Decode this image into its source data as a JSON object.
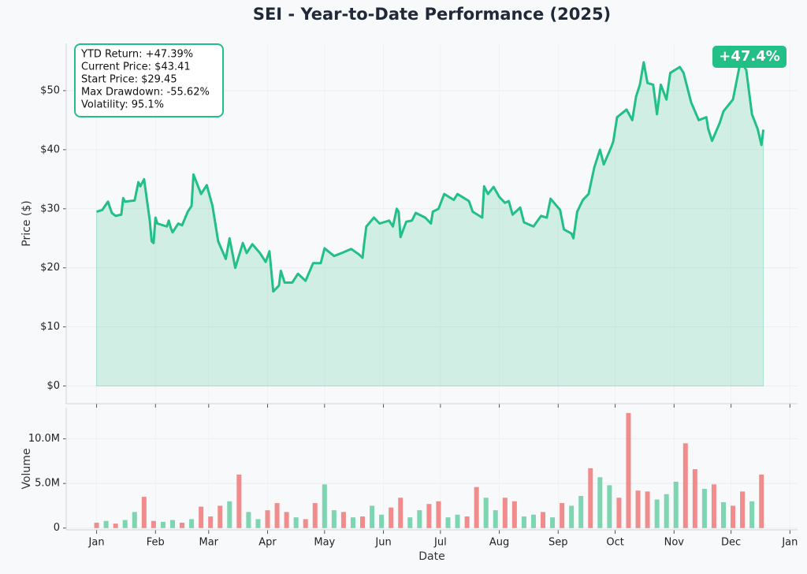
{
  "chart_data": [
    {
      "type": "line",
      "title": "SEI - Year-to-Date Performance (2025)",
      "ylabel": "Price ($)",
      "color": "#22bf87",
      "area_color": "#22bf87",
      "grid": true,
      "annotations": [
        "YTD Return: +47.39%",
        "Current Price: $43.41",
        "Start Price: $29.45",
        "Max Drawdown: -55.62%",
        "Volatility: 95.1%"
      ],
      "badge": "+47.4%",
      "x": [
        0,
        3,
        6,
        8,
        10,
        13,
        14,
        15,
        20,
        22,
        23,
        25,
        28,
        29,
        30,
        31,
        32,
        35,
        37,
        38,
        39,
        40,
        43,
        45,
        48,
        50,
        51,
        55,
        56,
        58,
        61,
        64,
        68,
        70,
        73,
        77,
        79,
        82,
        86,
        89,
        91,
        93,
        96,
        97,
        99,
        103,
        106,
        110,
        114,
        118,
        120,
        125,
        129,
        134,
        138,
        140,
        141,
        142,
        146,
        149,
        154,
        156,
        158,
        159,
        160,
        163,
        166,
        168,
        173,
        176,
        177,
        180,
        183,
        188,
        190,
        196,
        198,
        203,
        204,
        206,
        209,
        212,
        215,
        217,
        219,
        223,
        225,
        230,
        234,
        237,
        239,
        244,
        246,
        250,
        251,
        253,
        256,
        259,
        262,
        265,
        267,
        271,
        272,
        274,
        279,
        282,
        284,
        286,
        288,
        290,
        293,
        295,
        297,
        300,
        302,
        307,
        309,
        313,
        317,
        321,
        322,
        324,
        328,
        330,
        335,
        339,
        342,
        345,
        348,
        350,
        351
      ],
      "values": [
        29.5,
        29.8,
        31.2,
        29.3,
        28.8,
        29.0,
        31.8,
        31.2,
        31.4,
        34.5,
        33.8,
        35.0,
        28.0,
        24.5,
        24.2,
        28.5,
        27.5,
        27.2,
        27.0,
        28.0,
        26.8,
        26.0,
        27.5,
        27.2,
        29.5,
        30.5,
        35.8,
        32.5,
        33.0,
        34.0,
        30.5,
        24.5,
        21.5,
        25.0,
        20.0,
        24.2,
        22.5,
        24.0,
        22.5,
        21.0,
        22.8,
        16.0,
        17.0,
        19.5,
        17.5,
        17.5,
        19.0,
        17.8,
        20.8,
        20.8,
        23.3,
        22.0,
        22.5,
        23.2,
        22.3,
        21.7,
        24.5,
        27.0,
        28.5,
        27.5,
        28.0,
        27.0,
        30.0,
        29.5,
        25.2,
        27.8,
        28.0,
        29.3,
        28.5,
        27.5,
        29.5,
        30.0,
        32.5,
        31.5,
        32.5,
        31.3,
        29.5,
        28.5,
        33.8,
        32.5,
        33.7,
        32.0,
        31.0,
        31.3,
        29.0,
        30.2,
        27.7,
        27.0,
        28.8,
        28.5,
        31.7,
        29.8,
        26.5,
        25.8,
        25.0,
        29.5,
        31.5,
        32.5,
        37.0,
        40.0,
        37.5,
        40.5,
        41.4,
        45.5,
        46.8,
        45.0,
        49.0,
        51.0,
        54.8,
        51.3,
        51.0,
        46.0,
        51.0,
        48.5,
        53.0,
        54.0,
        53.0,
        48.0,
        45.0,
        45.5,
        43.5,
        41.5,
        44.5,
        46.5,
        48.5,
        55.0,
        53.5,
        46.0,
        43.5,
        40.8,
        43.4
      ],
      "xlim": [
        -16,
        369
      ],
      "xticks": [
        0,
        31,
        59,
        90,
        120,
        151,
        181,
        212,
        243,
        273,
        304,
        334,
        365
      ],
      "ylim": [
        -3,
        58
      ],
      "yticks": [
        {
          "value": 0,
          "label": "$0"
        },
        {
          "value": 10,
          "label": "$10"
        },
        {
          "value": 20,
          "label": "$20"
        },
        {
          "value": 30,
          "label": "$30"
        },
        {
          "value": 40,
          "label": "$40"
        },
        {
          "value": 50,
          "label": "$50"
        }
      ]
    },
    {
      "type": "bar",
      "ylabel": "Volume",
      "xlabel": "Date",
      "grid": true,
      "x": [
        0,
        5,
        10,
        15,
        20,
        25,
        30,
        35,
        40,
        45,
        50,
        55,
        60,
        65,
        70,
        75,
        80,
        85,
        90,
        95,
        100,
        105,
        110,
        115,
        120,
        125,
        130,
        135,
        140,
        145,
        150,
        155,
        160,
        165,
        170,
        175,
        180,
        185,
        190,
        195,
        200,
        205,
        210,
        215,
        220,
        225,
        230,
        235,
        240,
        245,
        250,
        255,
        260,
        265,
        270,
        275,
        280,
        285,
        290,
        295,
        300,
        305,
        310,
        315,
        320,
        325,
        330,
        335,
        340,
        345,
        350
      ],
      "values": [
        600000,
        800000,
        500000,
        900000,
        1800000,
        3500000,
        800000,
        700000,
        900000,
        600000,
        1000000,
        2400000,
        1300000,
        2500000,
        3000000,
        6000000,
        1800000,
        1000000,
        2000000,
        2800000,
        1800000,
        1200000,
        1000000,
        2800000,
        4900000,
        2000000,
        1800000,
        1200000,
        1300000,
        2500000,
        1500000,
        2300000,
        3400000,
        1200000,
        2000000,
        2700000,
        3000000,
        1200000,
        1500000,
        1300000,
        4600000,
        3400000,
        2000000,
        3400000,
        3000000,
        1300000,
        1500000,
        1800000,
        1200000,
        2800000,
        2500000,
        3600000,
        6700000,
        5700000,
        4800000,
        3400000,
        12900000,
        4200000,
        4100000,
        3200000,
        3800000,
        5200000,
        9500000,
        6600000,
        4400000,
        4900000,
        2900000,
        2500000,
        4100000,
        3000000,
        6000000
      ],
      "colors": [
        "#f08080",
        "#6fd0a8",
        "#f08080",
        "#6fd0a8",
        "#6fd0a8",
        "#f08080",
        "#f08080",
        "#6fd0a8",
        "#6fd0a8",
        "#f08080",
        "#6fd0a8",
        "#f08080",
        "#f08080",
        "#f08080",
        "#6fd0a8",
        "#f08080",
        "#6fd0a8",
        "#6fd0a8",
        "#f08080",
        "#f08080",
        "#f08080",
        "#6fd0a8",
        "#f08080",
        "#f08080",
        "#6fd0a8",
        "#6fd0a8",
        "#f08080",
        "#6fd0a8",
        "#f08080",
        "#6fd0a8",
        "#6fd0a8",
        "#f08080",
        "#f08080",
        "#6fd0a8",
        "#6fd0a8",
        "#f08080",
        "#f08080",
        "#6fd0a8",
        "#6fd0a8",
        "#f08080",
        "#f08080",
        "#6fd0a8",
        "#6fd0a8",
        "#f08080",
        "#f08080",
        "#6fd0a8",
        "#6fd0a8",
        "#f08080",
        "#6fd0a8",
        "#f08080",
        "#6fd0a8",
        "#6fd0a8",
        "#f08080",
        "#6fd0a8",
        "#6fd0a8",
        "#f08080",
        "#f08080",
        "#f08080",
        "#f08080",
        "#6fd0a8",
        "#6fd0a8",
        "#6fd0a8",
        "#f08080",
        "#f08080",
        "#6fd0a8",
        "#f08080",
        "#6fd0a8",
        "#f08080",
        "#f08080",
        "#6fd0a8",
        "#f08080"
      ],
      "xlim": [
        -16,
        369
      ],
      "xticks": [
        {
          "value": 0,
          "label": "Jan"
        },
        {
          "value": 31,
          "label": "Feb"
        },
        {
          "value": 59,
          "label": "Mar"
        },
        {
          "value": 90,
          "label": "Apr"
        },
        {
          "value": 120,
          "label": "May"
        },
        {
          "value": 151,
          "label": "Jun"
        },
        {
          "value": 181,
          "label": "Jul"
        },
        {
          "value": 212,
          "label": "Aug"
        },
        {
          "value": 243,
          "label": "Sep"
        },
        {
          "value": 273,
          "label": "Oct"
        },
        {
          "value": 304,
          "label": "Nov"
        },
        {
          "value": 334,
          "label": "Dec"
        },
        {
          "value": 365,
          "label": "Jan"
        }
      ],
      "ylim": [
        -200000,
        13500000
      ],
      "yticks": [
        0,
        {
          "value": 5000000,
          "label": "5.0M"
        },
        {
          "value": 10000000,
          "label": "10.0M"
        }
      ]
    }
  ]
}
